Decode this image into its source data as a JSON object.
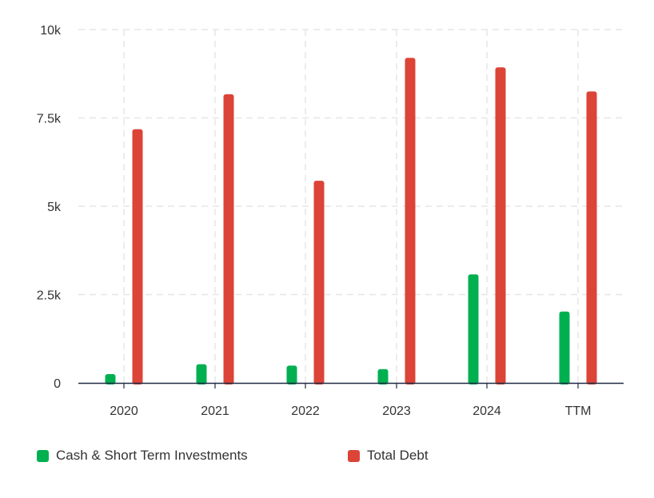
{
  "chart_data": {
    "type": "bar",
    "categories": [
      "2020",
      "2021",
      "2022",
      "2023",
      "2024",
      "TTM"
    ],
    "series": [
      {
        "name": "Cash & Short Term Investments",
        "color": "#00b050",
        "values": [
          250,
          530,
          490,
          390,
          3070,
          2020
        ]
      },
      {
        "name": "Total Debt",
        "color": "#dc4437",
        "values": [
          7180,
          8170,
          5720,
          9200,
          8930,
          8250
        ]
      }
    ],
    "ylim": [
      0,
      10000
    ],
    "y_ticks": [
      {
        "value": 0,
        "label": "0"
      },
      {
        "value": 2500,
        "label": "2.5k"
      },
      {
        "value": 5000,
        "label": "5k"
      },
      {
        "value": 7500,
        "label": "7.5k"
      },
      {
        "value": 10000,
        "label": "10k"
      }
    ],
    "grid": true,
    "legend_position": "bottom-left"
  }
}
